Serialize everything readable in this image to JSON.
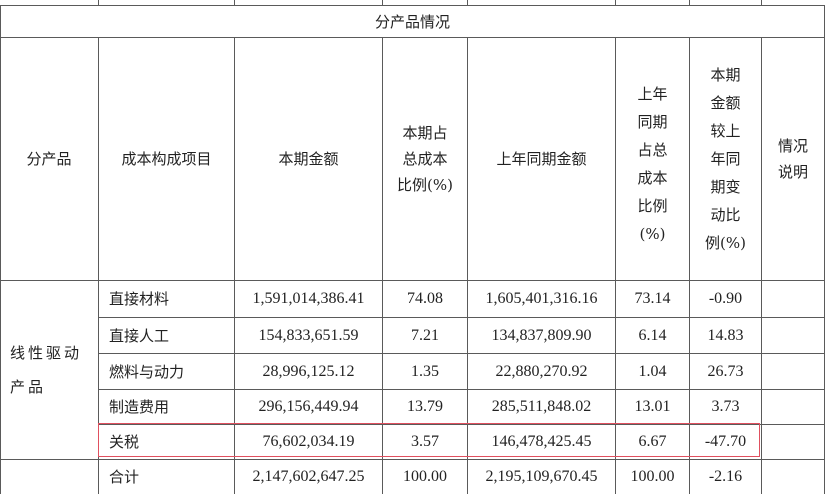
{
  "section_title": "分产品情况",
  "headers": {
    "product": "分产品",
    "cost_item": "成本构成项目",
    "current_amount": "本期金额",
    "current_ratio": [
      "本期占",
      "总成本",
      "比例(%)"
    ],
    "prior_amount": "上年同期金额",
    "prior_ratio": [
      "上年",
      "同期",
      "占总",
      "成本",
      "比例",
      "(%)"
    ],
    "change": [
      "本期",
      "金额",
      "较上",
      "年同",
      "期变",
      "动比",
      "例(%)"
    ],
    "notes": [
      "情况",
      "说明"
    ]
  },
  "product_group": [
    "线性驱动",
    "产品"
  ],
  "rows": [
    {
      "item": "直接材料",
      "current": "1,591,014,386.41",
      "current_pct": "74.08",
      "prior": "1,605,401,316.16",
      "prior_pct": "73.14",
      "change": "-0.90"
    },
    {
      "item": "直接人工",
      "current": "154,833,651.59",
      "current_pct": "7.21",
      "prior": "134,837,809.90",
      "prior_pct": "6.14",
      "change": "14.83"
    },
    {
      "item": "燃料与动力",
      "current": "28,996,125.12",
      "current_pct": "1.35",
      "prior": "22,880,270.92",
      "prior_pct": "1.04",
      "change": "26.73"
    },
    {
      "item": "制造费用",
      "current": "296,156,449.94",
      "current_pct": "13.79",
      "prior": "285,511,848.02",
      "prior_pct": "13.01",
      "change": "3.73"
    },
    {
      "item": "关税",
      "current": "76,602,034.19",
      "current_pct": "3.57",
      "prior": "146,478,425.45",
      "prior_pct": "6.67",
      "change": "-47.70"
    },
    {
      "item": "合计",
      "current": "2,147,602,647.25",
      "current_pct": "100.00",
      "prior": "2,195,109,670.45",
      "prior_pct": "100.00",
      "change": "-2.16"
    }
  ],
  "highlight_color": "#e0505f"
}
